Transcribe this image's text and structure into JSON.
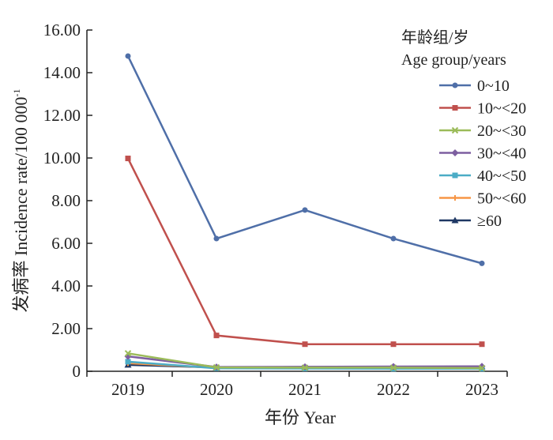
{
  "chart_data": {
    "type": "line",
    "x": [
      "2019",
      "2020",
      "2021",
      "2022",
      "2023"
    ],
    "xlabel": "年份 Year",
    "ylabel": "发病率 Incidence rate/100 000",
    "ylabel_superscript": "-1",
    "ylim": [
      0,
      16
    ],
    "y_ticks": [
      "0",
      "2.00",
      "4.00",
      "6.00",
      "8.00",
      "10.00",
      "12.00",
      "14.00",
      "16.00"
    ],
    "grid": false,
    "legend": {
      "title_line1": "年龄组/岁",
      "title_line2": "Age group/years",
      "placement": "top-right"
    },
    "series": [
      {
        "name": "0~10",
        "color": "#4f6fa8",
        "marker": "circle",
        "values": [
          14.78,
          6.22,
          7.56,
          6.22,
          5.06
        ]
      },
      {
        "name": "10~<20",
        "color": "#c0504d",
        "marker": "square",
        "values": [
          9.98,
          1.68,
          1.27,
          1.27,
          1.27
        ]
      },
      {
        "name": "20~<30",
        "color": "#9bbb59",
        "marker": "x",
        "values": [
          0.84,
          0.18,
          0.17,
          0.17,
          0.15
        ]
      },
      {
        "name": "30~<40",
        "color": "#7d5fa0",
        "marker": "diamond",
        "values": [
          0.7,
          0.2,
          0.21,
          0.22,
          0.23
        ]
      },
      {
        "name": "40~<50",
        "color": "#4bacc6",
        "marker": "square",
        "values": [
          0.45,
          0.14,
          0.13,
          0.12,
          0.12
        ]
      },
      {
        "name": "50~<60",
        "color": "#f79646",
        "marker": "plus",
        "values": [
          0.38,
          0.16,
          0.15,
          0.14,
          0.14
        ]
      },
      {
        "name": "≥60",
        "color": "#1f3864",
        "marker": "triangle",
        "values": [
          0.3,
          0.18,
          0.2,
          0.2,
          0.22
        ]
      }
    ]
  }
}
